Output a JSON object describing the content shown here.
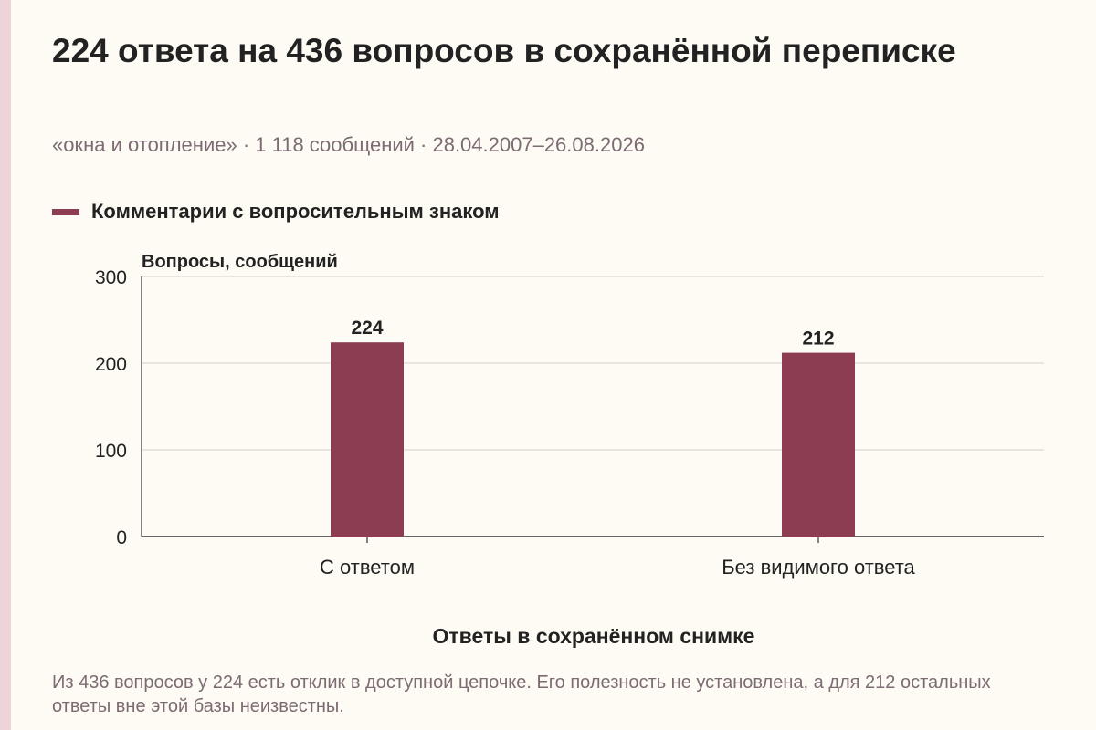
{
  "title": "224 ответа на 436 вопросов в сохранённой переписке",
  "subtitle": "«окна и отопление» · 1 118 сообщений · 28.04.2007–26.08.2026",
  "note": "Из 436 вопросов у 224 есть отклик в доступной цепочке. Его полезность не установлена, а для 212 остальных ответы вне этой базы неизвестны.",
  "colors": {
    "bar": "#8c3d52",
    "background": "#fdfbf4",
    "accent_strip": "#eed3da",
    "muted_text": "#7d6b73"
  },
  "chart_data": {
    "type": "bar",
    "categories": [
      "С ответом",
      "Без видимого ответа"
    ],
    "series": [
      {
        "name": "Комментарии с вопросительным знаком",
        "values": [
          224,
          212
        ],
        "value_labels": [
          "224",
          "212"
        ]
      }
    ],
    "ylabel": "Вопросы, сообщений",
    "xlabel": "Ответы в сохранённом снимке",
    "ylim": [
      0,
      300
    ],
    "yticks": [
      0,
      100,
      200,
      300
    ],
    "grid": true,
    "legend_position": "top-left"
  }
}
